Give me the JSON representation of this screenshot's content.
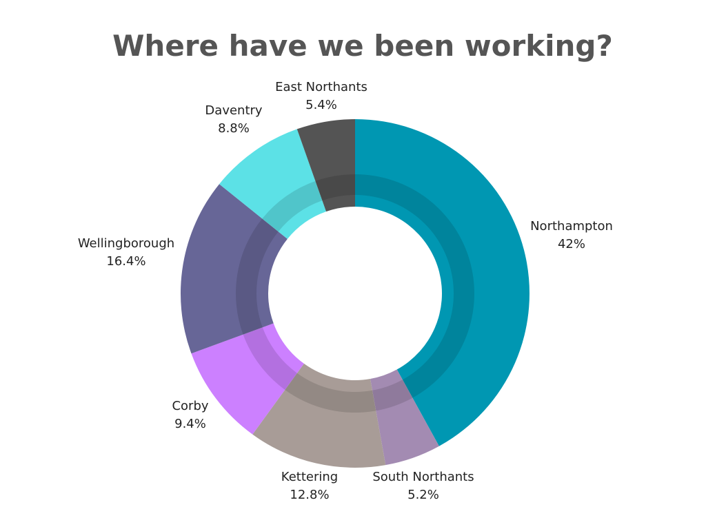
{
  "chart_data": {
    "type": "pie",
    "title": "Where have we been working?",
    "slices": [
      {
        "label": "Northampton",
        "value": 42,
        "display": "42%",
        "color": "#0097B2"
      },
      {
        "label": "South Northants",
        "value": 5.2,
        "display": "5.2%",
        "color": "#A38BB2"
      },
      {
        "label": "Kettering",
        "value": 12.8,
        "display": "12.8%",
        "color": "#A89C97"
      },
      {
        "label": "Corby",
        "value": 9.4,
        "display": "9.4%",
        "color": "#CC80FF"
      },
      {
        "label": "Wellingborough",
        "value": 16.4,
        "display": "16.4%",
        "color": "#676697"
      },
      {
        "label": "Daventry",
        "value": 8.8,
        "display": "8.8%",
        "color": "#5CE1E6"
      },
      {
        "label": "East Northants",
        "value": 5.4,
        "display": "5.4%",
        "color": "#545454"
      }
    ],
    "legend": "none"
  }
}
